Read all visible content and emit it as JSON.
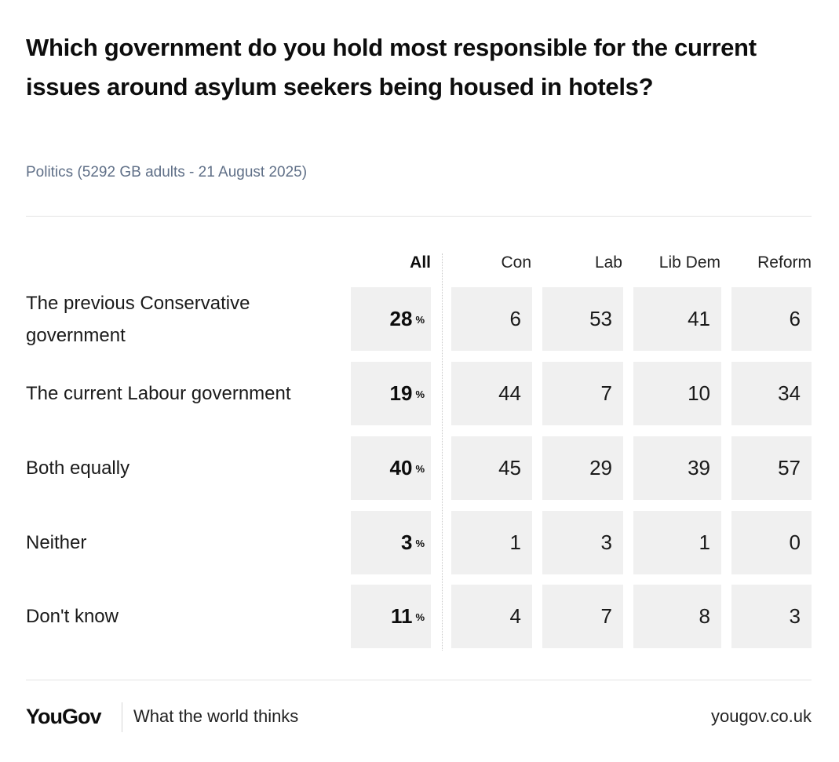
{
  "chart_data": {
    "type": "table",
    "title": "Which government do you hold most responsible for the current issues around asylum seekers being housed in hotels?",
    "subtitle": "Politics (5292 GB adults - 21 August 2025)",
    "columns": [
      "All",
      "Con",
      "Lab",
      "Lib Dem",
      "Reform"
    ],
    "percent_symbol": "%",
    "rows": [
      {
        "label": "The previous Conservative government",
        "all": "28",
        "values": [
          "6",
          "53",
          "41",
          "6"
        ]
      },
      {
        "label": "The current Labour government",
        "all": "19",
        "values": [
          "44",
          "7",
          "10",
          "34"
        ]
      },
      {
        "label": "Both equally",
        "all": "40",
        "values": [
          "45",
          "29",
          "39",
          "57"
        ]
      },
      {
        "label": "Neither",
        "all": "3",
        "values": [
          "1",
          "3",
          "1",
          "0"
        ]
      },
      {
        "label": "Don't know",
        "all": "11",
        "values": [
          "4",
          "7",
          "8",
          "3"
        ]
      }
    ]
  },
  "footer": {
    "logo": "YouGov",
    "tagline": "What the world thinks",
    "url": "yougov.co.uk"
  },
  "colors": {
    "cell_background": "#f0f0f0",
    "subtitle": "#5f6f87",
    "text": "#111111"
  }
}
